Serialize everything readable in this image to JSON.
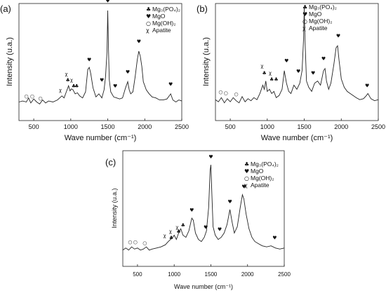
{
  "chart_data": [
    {
      "id": "a",
      "type": "line",
      "panel_label": "(a)",
      "xlabel": "Wave number (cm⁻¹)",
      "ylabel": "Intensity (u.a.)",
      "xlim": [
        300,
        2500
      ],
      "xticks": [
        500,
        1000,
        1500,
        2000,
        2500
      ],
      "yticks": false,
      "grid": false,
      "legend_position": "top-right",
      "legend": [
        {
          "symbol": "♣",
          "label": "Mg₃(PO₄)₂"
        },
        {
          "symbol": "♥",
          "label": "MgO"
        },
        {
          "symbol": "○",
          "label": "Mg(OH)₂"
        },
        {
          "symbol": "χ",
          "label": "Apatite"
        }
      ],
      "series": [
        {
          "x": [
            300,
            350,
            400,
            430,
            460,
            500,
            540,
            580,
            620,
            660,
            700,
            760,
            820,
            880,
            910,
            940,
            970,
            990,
            1010,
            1030,
            1060,
            1090,
            1120,
            1160,
            1200,
            1230,
            1250,
            1270,
            1300,
            1340,
            1380,
            1420,
            1450,
            1470,
            1490,
            1500,
            1510,
            1520,
            1540,
            1580,
            1620,
            1660,
            1700,
            1740,
            1770,
            1790,
            1810,
            1840,
            1870,
            1900,
            1920,
            1940,
            1960,
            1980,
            2020,
            2060,
            2100,
            2150,
            2200,
            2250,
            2300,
            2350,
            2380,
            2420,
            2460,
            2500
          ],
          "y": [
            0.1,
            0.11,
            0.1,
            0.14,
            0.09,
            0.13,
            0.1,
            0.08,
            0.12,
            0.09,
            0.11,
            0.1,
            0.12,
            0.16,
            0.14,
            0.2,
            0.26,
            0.21,
            0.23,
            0.22,
            0.18,
            0.19,
            0.16,
            0.14,
            0.2,
            0.42,
            0.44,
            0.38,
            0.24,
            0.15,
            0.18,
            0.14,
            0.22,
            0.35,
            0.6,
            1.0,
            0.62,
            0.32,
            0.2,
            0.15,
            0.14,
            0.13,
            0.14,
            0.24,
            0.3,
            0.22,
            0.18,
            0.2,
            0.35,
            0.52,
            0.6,
            0.55,
            0.45,
            0.3,
            0.22,
            0.18,
            0.15,
            0.14,
            0.12,
            0.12,
            0.13,
            0.18,
            0.12,
            0.1,
            0.12,
            0.11
          ]
        }
      ],
      "annotations": [
        {
          "symbol": "○",
          "x": 400,
          "y": 0.14
        },
        {
          "symbol": "○",
          "x": 480,
          "y": 0.14
        },
        {
          "symbol": "○",
          "x": 590,
          "y": 0.12
        },
        {
          "symbol": "χ",
          "x": 860,
          "y": 0.2
        },
        {
          "symbol": "χ",
          "x": 940,
          "y": 0.36
        },
        {
          "symbol": "♣",
          "x": 960,
          "y": 0.3
        },
        {
          "symbol": "χ",
          "x": 1010,
          "y": 0.3
        },
        {
          "symbol": "♣",
          "x": 1040,
          "y": 0.24
        },
        {
          "symbol": "♣",
          "x": 1080,
          "y": 0.24
        },
        {
          "symbol": "♥",
          "x": 1250,
          "y": 0.5
        },
        {
          "symbol": "♥",
          "x": 1420,
          "y": 0.3
        },
        {
          "symbol": "♥",
          "x": 1500,
          "y": 1.08
        },
        {
          "symbol": "♥",
          "x": 1600,
          "y": 0.24
        },
        {
          "symbol": "♥",
          "x": 1770,
          "y": 0.38
        },
        {
          "symbol": "♥",
          "x": 1920,
          "y": 0.68
        },
        {
          "symbol": "♥",
          "x": 2350,
          "y": 0.26
        }
      ]
    },
    {
      "id": "b",
      "type": "line",
      "panel_label": "(b)",
      "xlabel": "Wave number (cm⁻¹)",
      "ylabel": "Intensity (u.a.)",
      "xlim": [
        300,
        2500
      ],
      "xticks": [
        500,
        1000,
        1500,
        2000,
        2500
      ],
      "yticks": false,
      "grid": false,
      "legend_position": "top-right",
      "legend": [
        {
          "symbol": "♣",
          "label": "Mg₃(PO₄)₂"
        },
        {
          "symbol": "♥",
          "label": "MgO"
        },
        {
          "symbol": "○",
          "label": "Mg(OH)₂"
        },
        {
          "symbol": "χ",
          "label": "Apatite"
        }
      ],
      "series": [
        {
          "x": [
            300,
            340,
            380,
            420,
            460,
            500,
            540,
            580,
            620,
            660,
            700,
            740,
            780,
            820,
            860,
            900,
            940,
            960,
            980,
            1000,
            1030,
            1060,
            1090,
            1120,
            1160,
            1200,
            1230,
            1260,
            1290,
            1320,
            1360,
            1400,
            1440,
            1470,
            1490,
            1500,
            1510,
            1530,
            1560,
            1600,
            1640,
            1680,
            1720,
            1760,
            1780,
            1800,
            1830,
            1860,
            1900,
            1930,
            1950,
            1970,
            2000,
            2040,
            2080,
            2120,
            2160,
            2200,
            2250,
            2300,
            2340,
            2360,
            2400,
            2450,
            2500
          ],
          "y": [
            0.12,
            0.1,
            0.14,
            0.09,
            0.13,
            0.1,
            0.14,
            0.11,
            0.09,
            0.15,
            0.1,
            0.13,
            0.11,
            0.14,
            0.12,
            0.18,
            0.26,
            0.22,
            0.3,
            0.2,
            0.22,
            0.18,
            0.2,
            0.14,
            0.16,
            0.22,
            0.4,
            0.28,
            0.2,
            0.18,
            0.26,
            0.22,
            0.28,
            0.4,
            0.7,
            1.0,
            0.7,
            0.3,
            0.24,
            0.2,
            0.28,
            0.3,
            0.26,
            0.4,
            0.42,
            0.3,
            0.22,
            0.28,
            0.46,
            0.62,
            0.64,
            0.5,
            0.32,
            0.24,
            0.2,
            0.18,
            0.16,
            0.14,
            0.12,
            0.13,
            0.16,
            0.18,
            0.13,
            0.11,
            0.12
          ]
        }
      ],
      "annotations": [
        {
          "symbol": "○",
          "x": 370,
          "y": 0.18
        },
        {
          "symbol": "○",
          "x": 440,
          "y": 0.17
        },
        {
          "symbol": "○",
          "x": 580,
          "y": 0.16
        },
        {
          "symbol": "χ",
          "x": 930,
          "y": 0.43
        },
        {
          "symbol": "♣",
          "x": 960,
          "y": 0.36
        },
        {
          "symbol": "χ",
          "x": 1040,
          "y": 0.36
        },
        {
          "symbol": "♣",
          "x": 1060,
          "y": 0.3
        },
        {
          "symbol": "♣",
          "x": 1120,
          "y": 0.3
        },
        {
          "symbol": "♥",
          "x": 1260,
          "y": 0.48
        },
        {
          "symbol": "♥",
          "x": 1420,
          "y": 0.38
        },
        {
          "symbol": "♥",
          "x": 1500,
          "y": 1.08
        },
        {
          "symbol": "♥",
          "x": 1620,
          "y": 0.36
        },
        {
          "symbol": "♥",
          "x": 1760,
          "y": 0.5
        },
        {
          "symbol": "♥",
          "x": 1960,
          "y": 0.72
        },
        {
          "symbol": "♥",
          "x": 2350,
          "y": 0.24
        }
      ]
    },
    {
      "id": "c",
      "type": "line",
      "panel_label": "(c)",
      "xlabel": "Wave number (cm⁻¹)",
      "ylabel": "Intensity (u.a.)",
      "xlim": [
        300,
        2500
      ],
      "xticks": [
        500,
        1000,
        1500,
        2000,
        2500
      ],
      "yticks": false,
      "grid": false,
      "legend_position": "top-right",
      "legend": [
        {
          "symbol": "♣",
          "label": "Mg₃(PO₄)₂"
        },
        {
          "symbol": "♥",
          "label": "MgO"
        },
        {
          "symbol": "○",
          "label": "Mg(OH)₂"
        },
        {
          "symbol": "χ",
          "label": "Apatite"
        }
      ],
      "series": [
        {
          "x": [
            300,
            340,
            380,
            420,
            460,
            500,
            540,
            580,
            620,
            660,
            700,
            760,
            820,
            880,
            920,
            950,
            980,
            1000,
            1030,
            1060,
            1090,
            1120,
            1160,
            1200,
            1240,
            1260,
            1290,
            1330,
            1370,
            1410,
            1440,
            1470,
            1490,
            1500,
            1510,
            1530,
            1560,
            1600,
            1640,
            1680,
            1720,
            1760,
            1790,
            1820,
            1860,
            1900,
            1930,
            1950,
            1980,
            2020,
            2060,
            2100,
            2150,
            2200,
            2260,
            2320,
            2380,
            2440,
            2500
          ],
          "y": [
            0.1,
            0.12,
            0.1,
            0.13,
            0.11,
            0.12,
            0.1,
            0.11,
            0.13,
            0.1,
            0.11,
            0.12,
            0.13,
            0.15,
            0.18,
            0.2,
            0.22,
            0.24,
            0.2,
            0.26,
            0.3,
            0.24,
            0.22,
            0.28,
            0.4,
            0.38,
            0.26,
            0.2,
            0.18,
            0.22,
            0.28,
            0.5,
            0.85,
            0.9,
            0.7,
            0.32,
            0.24,
            0.2,
            0.22,
            0.26,
            0.34,
            0.48,
            0.36,
            0.26,
            0.32,
            0.5,
            0.62,
            0.58,
            0.44,
            0.3,
            0.22,
            0.18,
            0.16,
            0.14,
            0.13,
            0.14,
            0.12,
            0.11,
            0.12
          ]
        }
      ],
      "annotations": [
        {
          "symbol": "○",
          "x": 400,
          "y": 0.16
        },
        {
          "symbol": "○",
          "x": 470,
          "y": 0.16
        },
        {
          "symbol": "○",
          "x": 600,
          "y": 0.15
        },
        {
          "symbol": "χ",
          "x": 870,
          "y": 0.22
        },
        {
          "symbol": "χ",
          "x": 950,
          "y": 0.26
        },
        {
          "symbol": "♣",
          "x": 960,
          "y": 0.2
        },
        {
          "symbol": "χ",
          "x": 1040,
          "y": 0.3
        },
        {
          "symbol": "♣",
          "x": 1060,
          "y": 0.26
        },
        {
          "symbol": "♣",
          "x": 1120,
          "y": 0.32
        },
        {
          "symbol": "♥",
          "x": 1240,
          "y": 0.46
        },
        {
          "symbol": "♥",
          "x": 1430,
          "y": 0.3
        },
        {
          "symbol": "♥",
          "x": 1500,
          "y": 0.96
        },
        {
          "symbol": "♥",
          "x": 1620,
          "y": 0.28
        },
        {
          "symbol": "♥",
          "x": 1760,
          "y": 0.54
        },
        {
          "symbol": "♥",
          "x": 1950,
          "y": 0.68
        },
        {
          "symbol": "♥",
          "x": 2370,
          "y": 0.2
        }
      ]
    }
  ]
}
